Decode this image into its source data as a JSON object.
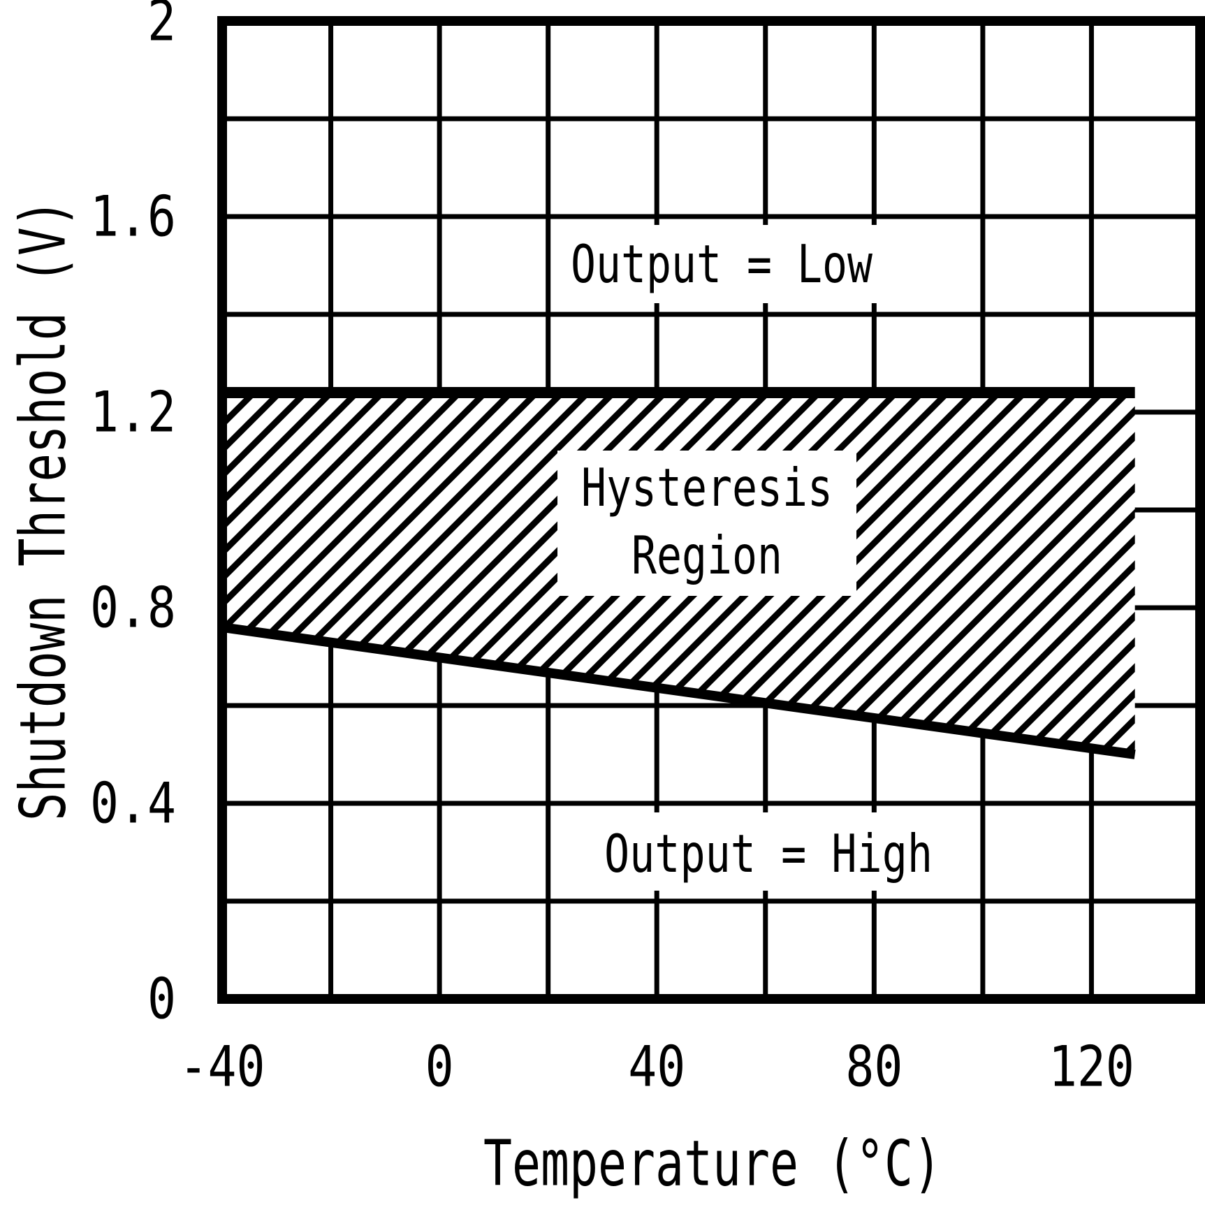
{
  "figure": {
    "background_color": "#ffffff",
    "ink_color": "#000000"
  },
  "chart_data": {
    "type": "area",
    "title": "",
    "xlabel": "Temperature (°C)",
    "ylabel": "Shutdown Threshold (V)",
    "xlim": [
      -40,
      140
    ],
    "ylim": [
      0,
      2
    ],
    "x_gridline_step": 20,
    "y_gridline_step": 0.2,
    "grid": true,
    "legend": false,
    "x_ticks": [
      {
        "value": -40,
        "label": "-40"
      },
      {
        "value": 0,
        "label": "0"
      },
      {
        "value": 40,
        "label": "40"
      },
      {
        "value": 80,
        "label": "80"
      },
      {
        "value": 120,
        "label": "120"
      }
    ],
    "y_ticks": [
      {
        "value": 0,
        "label": "0"
      },
      {
        "value": 0.4,
        "label": "0.4"
      },
      {
        "value": 0.8,
        "label": "0.8"
      },
      {
        "value": 1.2,
        "label": "1.2"
      },
      {
        "value": 1.6,
        "label": "1.6"
      },
      {
        "value": 2,
        "label": "2"
      }
    ],
    "series": [
      {
        "name": "upper-shutdown-threshold",
        "style": "thick-solid",
        "points": [
          {
            "x": -40,
            "y": 1.24
          },
          {
            "x": 128,
            "y": 1.24
          }
        ]
      },
      {
        "name": "lower-shutdown-threshold",
        "style": "thick-solid",
        "points": [
          {
            "x": -40,
            "y": 0.76
          },
          {
            "x": 128,
            "y": 0.5
          }
        ]
      }
    ],
    "hysteresis_region": {
      "between": [
        "upper-shutdown-threshold",
        "lower-shutdown-threshold"
      ],
      "fill": "diagonal-hatch",
      "hatch_direction": "forward-slash"
    },
    "annotations": [
      {
        "name": "output-low",
        "text": "Output = Low"
      },
      {
        "name": "hysteresis-line1",
        "text": "Hysteresis"
      },
      {
        "name": "hysteresis-line2",
        "text": "Region"
      },
      {
        "name": "output-high",
        "text": "Output = High"
      }
    ]
  }
}
